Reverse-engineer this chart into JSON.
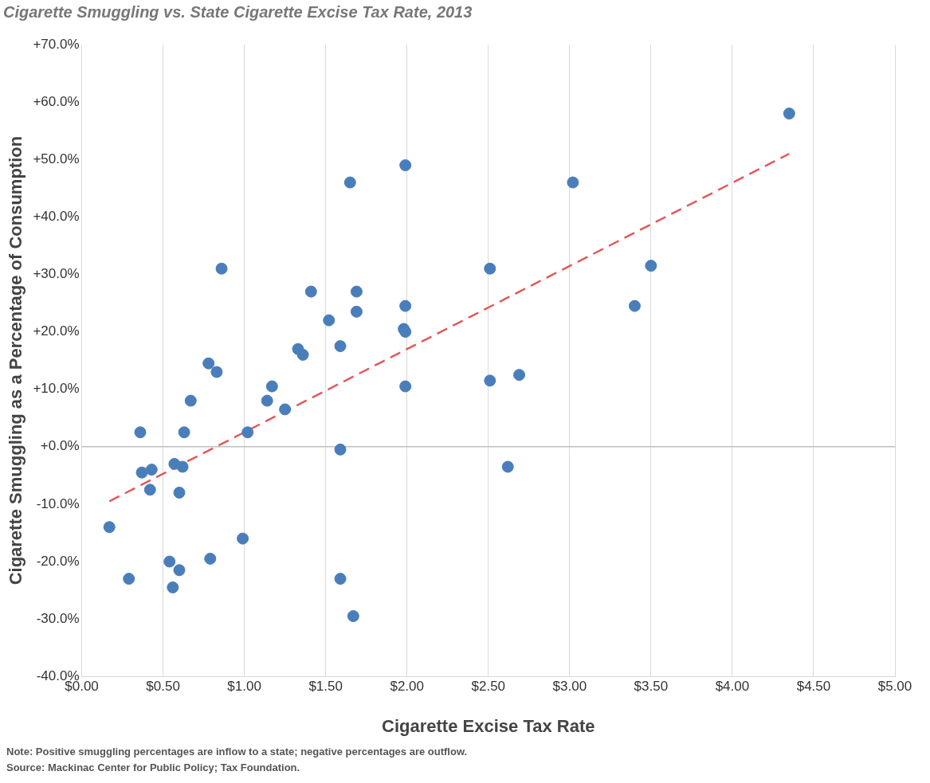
{
  "chart_data": {
    "type": "scatter",
    "title": "Cigarette Smuggling vs. State Cigarette Excise Tax Rate, 2013",
    "xlabel": "Cigarette Excise Tax Rate",
    "ylabel": "Cigarette Smuggling as a Percentage of Consumption",
    "annotations": [
      "Note: Positive smuggling percentages are inflow to a state; negative percentages are outflow.",
      "Source: Mackinac Center for Public Policy; Tax Foundation."
    ],
    "xlim": [
      0,
      5
    ],
    "xticks": [
      {
        "value": 0,
        "label": "$0.00"
      },
      {
        "value": 0.5,
        "label": "$0.50"
      },
      {
        "value": 1,
        "label": "$1.00"
      },
      {
        "value": 1.5,
        "label": "$1.50"
      },
      {
        "value": 2,
        "label": "$2.00"
      },
      {
        "value": 2.5,
        "label": "$2.50"
      },
      {
        "value": 3,
        "label": "$3.00"
      },
      {
        "value": 3.5,
        "label": "$3.50"
      },
      {
        "value": 4,
        "label": "$4.00"
      },
      {
        "value": 4.5,
        "label": "$4.50"
      },
      {
        "value": 5,
        "label": "$5.00"
      }
    ],
    "ylim": [
      -40,
      70
    ],
    "yticks": [
      {
        "value": -40,
        "label": "-40.0%"
      },
      {
        "value": -30,
        "label": "-30.0%"
      },
      {
        "value": -20,
        "label": "-20.0%"
      },
      {
        "value": -10,
        "label": "-10.0%"
      },
      {
        "value": 0,
        "label": "+0.0%"
      },
      {
        "value": 10,
        "label": "+10.0%"
      },
      {
        "value": 20,
        "label": "+20.0%"
      },
      {
        "value": 30,
        "label": "+30.0%"
      },
      {
        "value": 40,
        "label": "+40.0%"
      },
      {
        "value": 50,
        "label": "+50.0%"
      },
      {
        "value": 60,
        "label": "+60.0%"
      },
      {
        "value": 70,
        "label": "+70.0%"
      }
    ],
    "grid": "x",
    "marker": "circle",
    "ref_lines": [
      {
        "axis": "y",
        "value": 0,
        "color": "#bfbfbf"
      }
    ],
    "series": [
      {
        "type": "scatter",
        "color": "#4a7ebb",
        "x": [
          0.17,
          0.29,
          0.36,
          0.37,
          0.43,
          0.42,
          0.54,
          0.56,
          0.57,
          0.6,
          0.6,
          0.62,
          0.63,
          0.67,
          0.78,
          0.83,
          0.86,
          0.79,
          0.99,
          1.02,
          1.14,
          1.17,
          1.25,
          1.33,
          1.36,
          1.41,
          1.52,
          1.59,
          1.59,
          1.59,
          1.65,
          1.67,
          1.69,
          1.69,
          1.98,
          1.99,
          1.99,
          1.99,
          1.99,
          2.51,
          2.51,
          2.62,
          2.69,
          3.02,
          3.4,
          3.5,
          4.35
        ],
        "values": [
          -14,
          -23,
          2.5,
          -4.5,
          -4,
          -7.5,
          -20,
          -24.5,
          -3,
          -8,
          -21.5,
          -3.5,
          2.5,
          8,
          14.5,
          13,
          31,
          -19.5,
          -16,
          2.5,
          8,
          10.5,
          6.5,
          17,
          16,
          27,
          22,
          17.5,
          -0.5,
          -23,
          46,
          -29.5,
          27,
          23.5,
          20.5,
          24.5,
          20,
          49,
          10.5,
          11.5,
          31,
          -3.5,
          12.5,
          46,
          24.5,
          31.5,
          58
        ]
      },
      {
        "type": "line",
        "color": "#e05a5a",
        "line_style": "dashed",
        "marker": "none",
        "x": [
          0.17,
          4.35
        ],
        "values": [
          -9.5,
          51
        ]
      }
    ]
  }
}
